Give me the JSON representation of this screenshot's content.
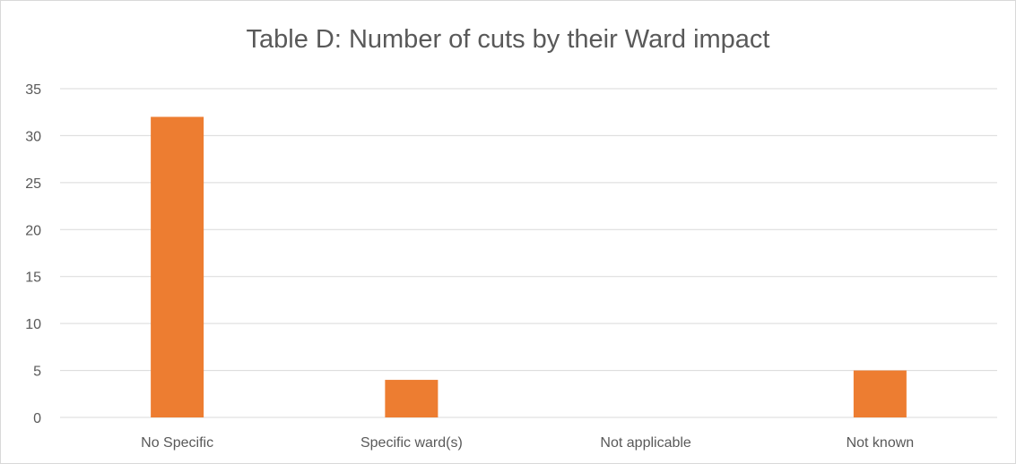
{
  "chart_data": {
    "type": "bar",
    "title": "Table D: Number of cuts by their Ward impact",
    "xlabel": "",
    "ylabel": "",
    "categories": [
      "No Specific",
      "Specific ward(s)",
      "Not applicable",
      "Not known"
    ],
    "values": [
      32,
      4,
      0,
      5
    ],
    "ylim": [
      0,
      35
    ],
    "yticks": [
      0,
      5,
      10,
      15,
      20,
      25,
      30,
      35
    ],
    "grid": true,
    "legend": "none",
    "bar_color": "#ED7D31",
    "grid_color": "#D9D9D9",
    "text_color": "#595959"
  }
}
